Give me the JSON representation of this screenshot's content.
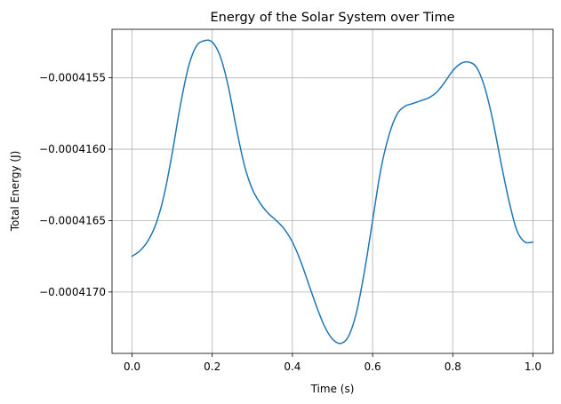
{
  "chart_data": {
    "type": "line",
    "title": "Energy of the Solar System over Time",
    "xlabel": "Time (s)",
    "ylabel": "Total Energy (J)",
    "xlim": [
      -0.05,
      1.05
    ],
    "ylim": [
      -0.00041743,
      -0.00041516
    ],
    "grid": true,
    "legend": "none",
    "x_ticks": [
      {
        "value": 0.0,
        "label": "0.0"
      },
      {
        "value": 0.2,
        "label": "0.2"
      },
      {
        "value": 0.4,
        "label": "0.4"
      },
      {
        "value": 0.6,
        "label": "0.6"
      },
      {
        "value": 0.8,
        "label": "0.8"
      },
      {
        "value": 1.0,
        "label": "1.0"
      }
    ],
    "y_ticks": [
      {
        "value": -0.0004155,
        "label": "−0.0004155"
      },
      {
        "value": -0.000416,
        "label": "−0.0004160"
      },
      {
        "value": -0.0004165,
        "label": "−0.0004165"
      },
      {
        "value": -0.000417,
        "label": "−0.0004170"
      }
    ],
    "series": [
      {
        "color": "#1f77b4",
        "x": [
          0.0,
          0.02,
          0.04,
          0.06,
          0.08,
          0.1,
          0.12,
          0.14,
          0.16,
          0.18,
          0.2,
          0.22,
          0.24,
          0.26,
          0.28,
          0.3,
          0.32,
          0.34,
          0.36,
          0.38,
          0.4,
          0.42,
          0.44,
          0.46,
          0.48,
          0.5,
          0.52,
          0.54,
          0.56,
          0.58,
          0.6,
          0.62,
          0.64,
          0.66,
          0.68,
          0.7,
          0.72,
          0.74,
          0.76,
          0.78,
          0.8,
          0.82,
          0.84,
          0.86,
          0.88,
          0.9,
          0.92,
          0.94,
          0.96,
          0.98,
          1.0
        ],
        "values": [
          -0.00041675,
          -0.00041671,
          -0.00041664,
          -0.00041652,
          -0.00041632,
          -0.00041603,
          -0.0004157,
          -0.00041543,
          -0.00041528,
          -0.00041524,
          -0.00041525,
          -0.00041535,
          -0.00041556,
          -0.00041585,
          -0.00041611,
          -0.00041628,
          -0.00041638,
          -0.00041645,
          -0.0004165,
          -0.00041656,
          -0.00041665,
          -0.00041678,
          -0.00041694,
          -0.0004171,
          -0.00041724,
          -0.00041733,
          -0.00041736,
          -0.00041731,
          -0.00041714,
          -0.00041685,
          -0.0004165,
          -0.00041615,
          -0.00041591,
          -0.00041576,
          -0.0004157,
          -0.00041568,
          -0.00041566,
          -0.00041564,
          -0.0004156,
          -0.00041553,
          -0.00041545,
          -0.0004154,
          -0.00041539,
          -0.00041543,
          -0.00041557,
          -0.0004158,
          -0.00041609,
          -0.00041636,
          -0.00041657,
          -0.00041665,
          -0.00041665
        ]
      }
    ]
  }
}
